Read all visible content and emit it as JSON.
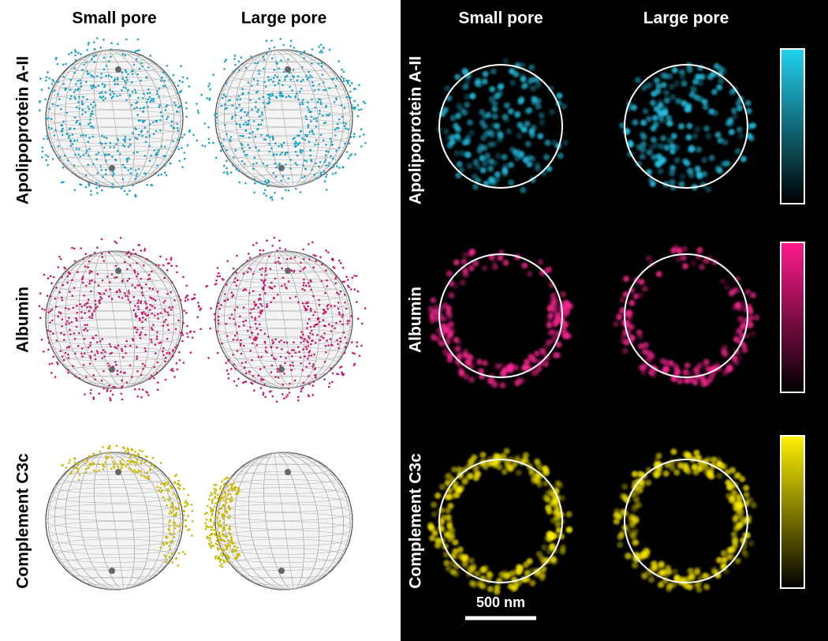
{
  "left_panel": {
    "columns": [
      "Small pore",
      "Large pore"
    ],
    "rows": [
      "Apolipoprotein A-II",
      "Albumin",
      "Complement C3c"
    ]
  },
  "right_panel": {
    "columns": [
      "Small pore",
      "Large pore"
    ],
    "rows": [
      "Apolipoprotein A-II",
      "Albumin",
      "Complement C3c"
    ],
    "scale_bar": "500 nm"
  }
}
